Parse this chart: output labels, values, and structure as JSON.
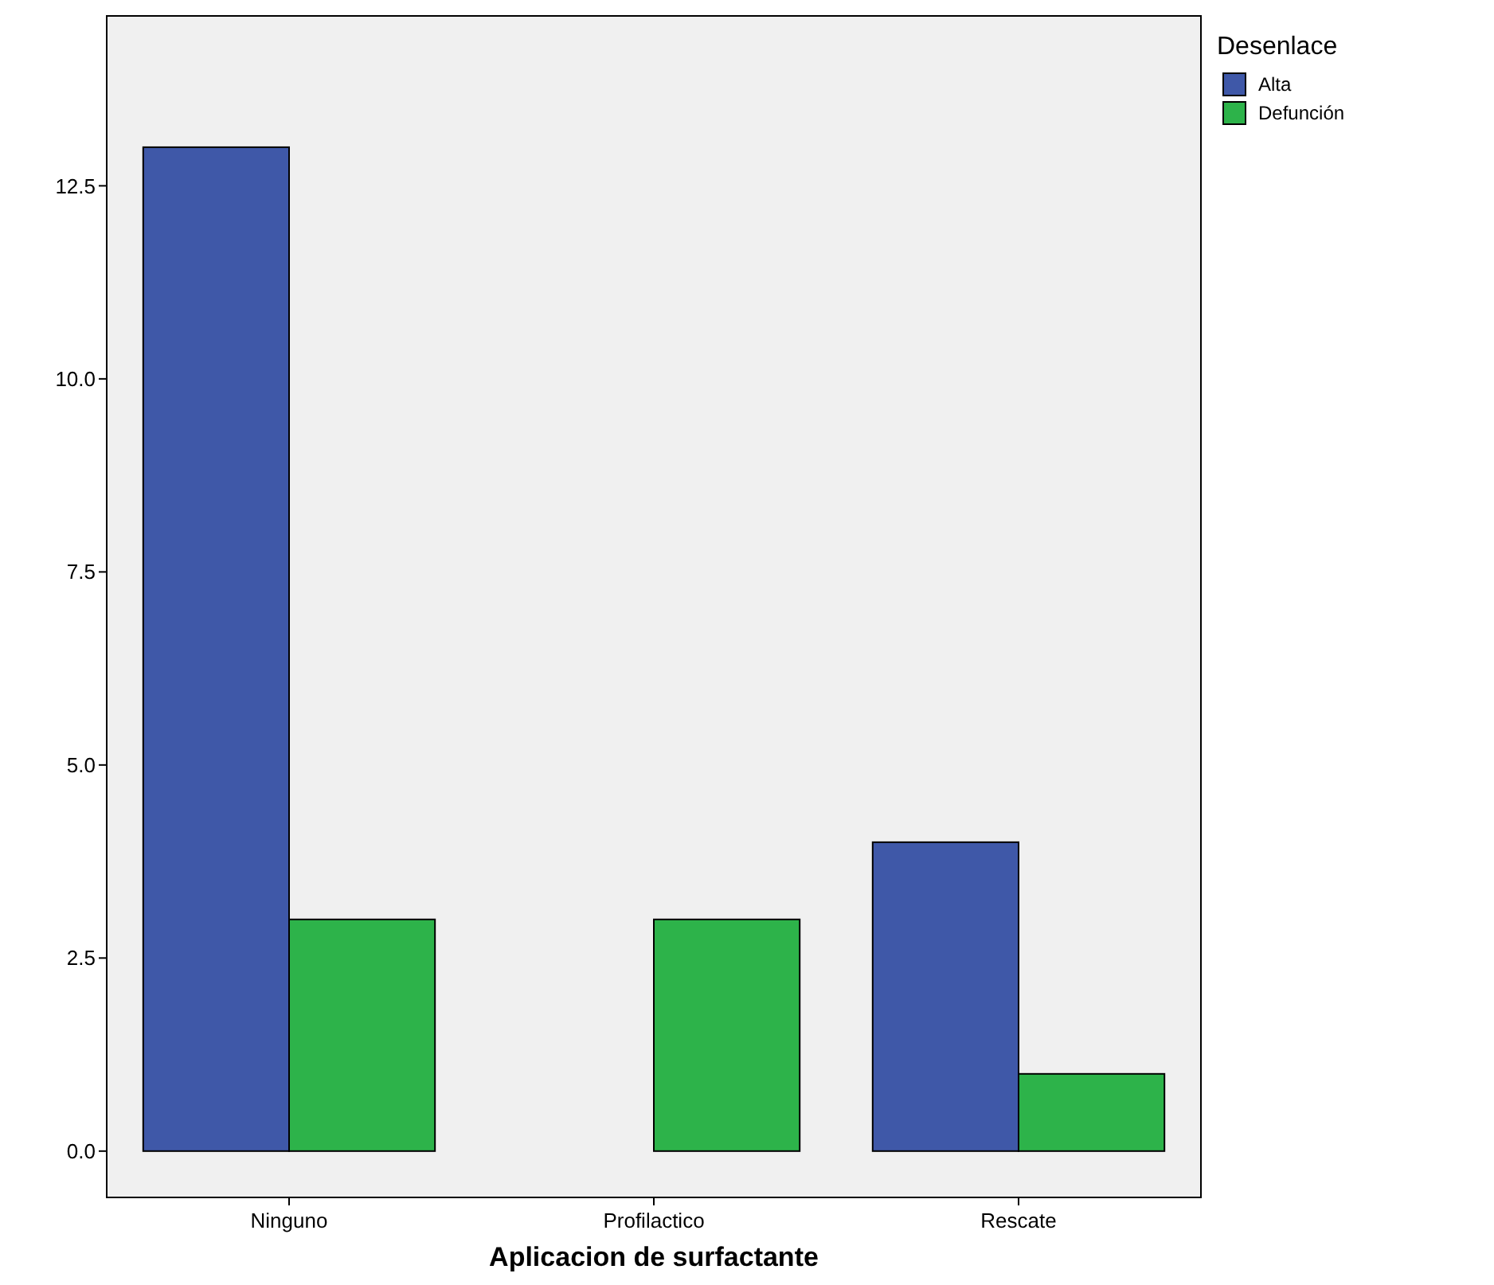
{
  "chart_data": {
    "type": "bar",
    "xlabel": "Aplicacion de surfactante",
    "legend_title": "Desenlace",
    "categories": [
      "Ninguno",
      "Profilactico",
      "Rescate"
    ],
    "series": [
      {
        "name": "Alta",
        "color": "#3f58a8",
        "values": [
          13,
          0,
          4
        ]
      },
      {
        "name": "Defunción",
        "color": "#2db34a",
        "values": [
          3,
          3,
          1
        ]
      }
    ],
    "ylim": [
      -0.6,
      14.7
    ],
    "yticks": [
      {
        "value": 0,
        "label": "0.0"
      },
      {
        "value": 2.5,
        "label": "2.5"
      },
      {
        "value": 5,
        "label": "5.0"
      },
      {
        "value": 7.5,
        "label": "7.5"
      },
      {
        "value": 10,
        "label": "10.0"
      },
      {
        "value": 12.5,
        "label": "12.5"
      }
    ],
    "grid": false,
    "legend": "top right"
  }
}
